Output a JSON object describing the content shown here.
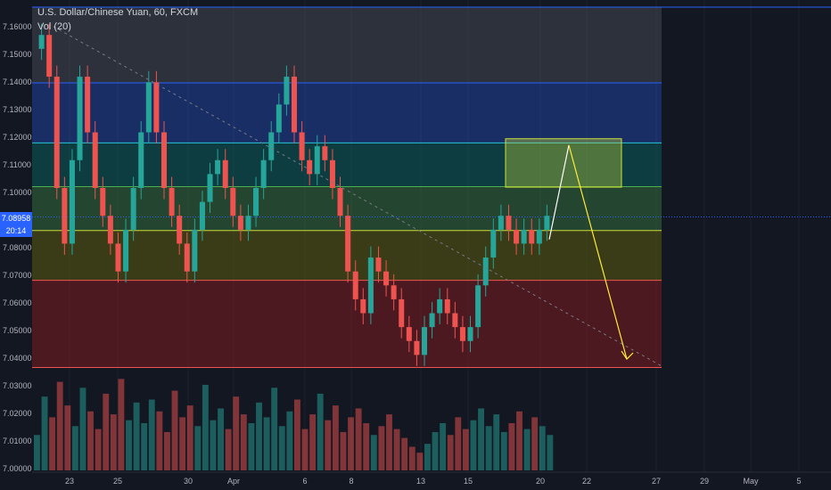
{
  "header": {
    "symbol_line": "U.S. Dollar/Chinese Yuan, 60, FXCM",
    "indicator_line": "Vol (20)"
  },
  "price_tag": {
    "price": "7.08958",
    "countdown": "20:14"
  },
  "colors": {
    "background": "#131722",
    "grid": "#1e222d",
    "up": "#26a69a",
    "down": "#ef5350",
    "fib_gray": "#5d606b",
    "fib_blue": "#2962ff",
    "fib_green": "#4caf50",
    "fib_olive": "#808000",
    "fib_red": "#b71c1c",
    "arrow": "#ffeb3b",
    "target_box": "#cddc39"
  },
  "chart_data": {
    "type": "candlestick",
    "y_axis": {
      "ticks": [
        "7.16000",
        "7.15000",
        "7.14000",
        "7.13000",
        "7.12000",
        "7.11000",
        "7.10000",
        "7.09000",
        "7.08000",
        "7.07000",
        "7.06000",
        "7.05000",
        "7.04000",
        "7.03000",
        "7.02000",
        "7.01000",
        "7.00000"
      ],
      "ylim": [
        7.0,
        7.165
      ]
    },
    "x_axis": {
      "ticks": [
        "23",
        "25",
        "30",
        "Apr",
        "6",
        "8",
        "13",
        "15",
        "20",
        "22",
        "27",
        "29",
        "May",
        "5"
      ]
    },
    "fib_levels": [
      7.165,
      7.1378,
      7.1162,
      7.1005,
      7.0847,
      7.0668,
      7.0355
    ],
    "trendline": {
      "from": [
        0,
        7.158
      ],
      "to": [
        1,
        7.036
      ]
    },
    "target_box": {
      "y_top": 7.1177,
      "y_bottom": 7.1003
    },
    "projection": {
      "points": [
        7.0815,
        7.1154,
        7.0385
      ]
    },
    "price_series": [
      7.15,
      7.155,
      7.14,
      7.1,
      7.08,
      7.11,
      7.14,
      7.12,
      7.1,
      7.09,
      7.08,
      7.07,
      7.085,
      7.1,
      7.12,
      7.138,
      7.12,
      7.1,
      7.09,
      7.08,
      7.07,
      7.085,
      7.095,
      7.105,
      7.11,
      7.1,
      7.09,
      7.085,
      7.09,
      7.1,
      7.11,
      7.12,
      7.13,
      7.14,
      7.12,
      7.11,
      7.105,
      7.115,
      7.11,
      7.1,
      7.09,
      7.07,
      7.06,
      7.055,
      7.075,
      7.07,
      7.065,
      7.06,
      7.05,
      7.045,
      7.04,
      7.05,
      7.055,
      7.06,
      7.055,
      7.05,
      7.045,
      7.05,
      7.065,
      7.075,
      7.085,
      7.09,
      7.085,
      7.08,
      7.085,
      7.08,
      7.085,
      7.09
    ],
    "volume_series": [
      12,
      25,
      18,
      30,
      22,
      15,
      28,
      20,
      14,
      26,
      19,
      31,
      17,
      23,
      16,
      24,
      20,
      13,
      27,
      18,
      22,
      15,
      29,
      17,
      21,
      14,
      25,
      19,
      16,
      23,
      18,
      28,
      15,
      20,
      24,
      14,
      19,
      26,
      17,
      22,
      13,
      18,
      21,
      16,
      12,
      15,
      19,
      14,
      11,
      8,
      6,
      9,
      13,
      16,
      12,
      18,
      14,
      17,
      21,
      15,
      19,
      13,
      16,
      20,
      14,
      18,
      15,
      12
    ]
  }
}
